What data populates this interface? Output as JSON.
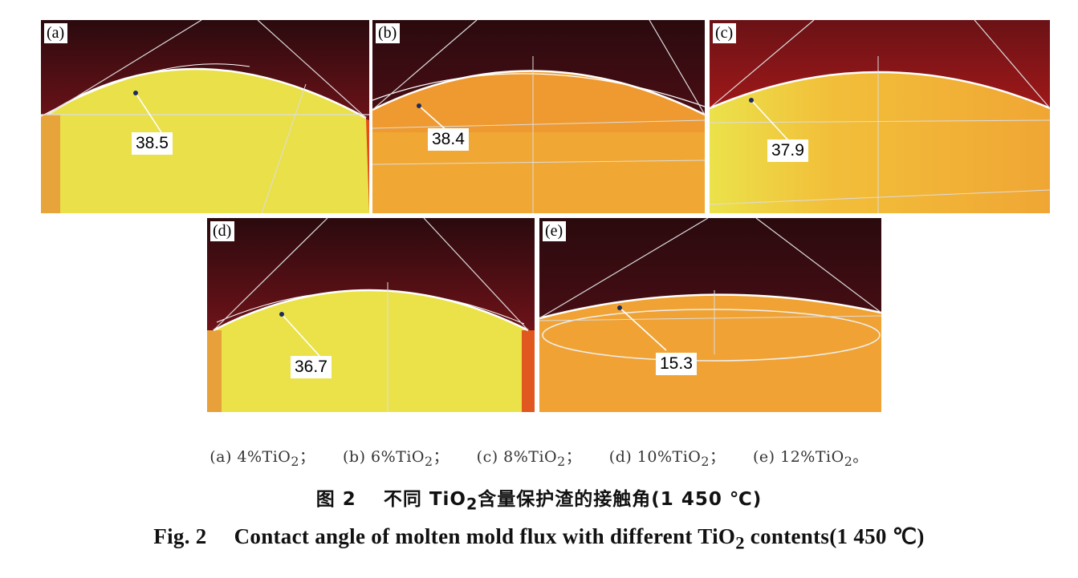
{
  "panels": [
    {
      "tag": "(a)",
      "angle": "38.5"
    },
    {
      "tag": "(b)",
      "angle": "38.4"
    },
    {
      "tag": "(c)",
      "angle": "37.9"
    },
    {
      "tag": "(d)",
      "angle": "36.7"
    },
    {
      "tag": "(e)",
      "angle": "15.3"
    }
  ],
  "subcaption": [
    {
      "text": "(a) 4%TiO",
      "sub": "2",
      "end": "；"
    },
    {
      "text": "(b) 6%TiO",
      "sub": "2",
      "end": "；"
    },
    {
      "text": "(c) 8%TiO",
      "sub": "2",
      "end": "；"
    },
    {
      "text": "(d) 10%TiO",
      "sub": "2",
      "end": "；"
    },
    {
      "text": "(e) 12%TiO",
      "sub": "2",
      "end": "。"
    }
  ],
  "caption_cn": {
    "num": "图 2",
    "pre": "不同 TiO",
    "sub": "2",
    "post": "含量保护渣的接触角(1 450 ℃)"
  },
  "caption_en": {
    "num": "Fig. 2",
    "pre": "Contact angle of molten mold flux with different TiO",
    "sub": "2",
    "post": " contents(1 450 ℃)"
  },
  "colors": {
    "dark": "#3a0c10",
    "hot": "#c01818",
    "yellow": "#ebe34a",
    "orange": "#f1a531"
  }
}
